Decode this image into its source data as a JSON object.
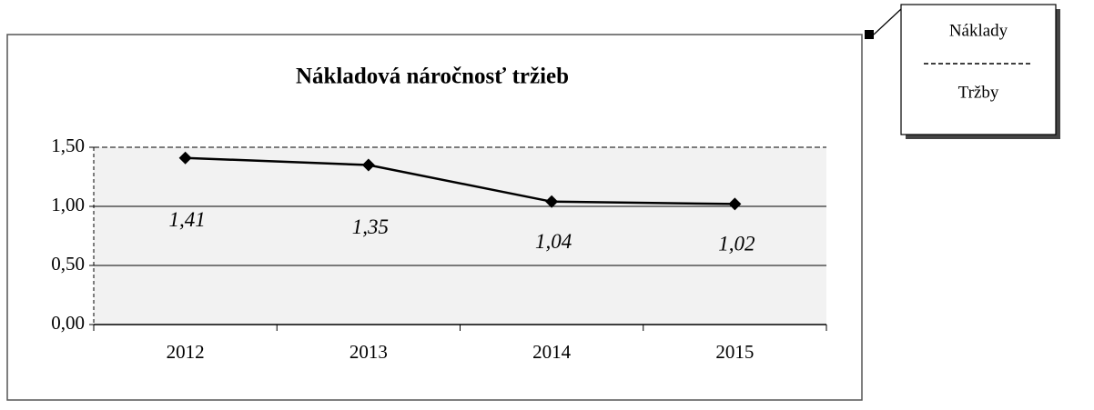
{
  "chart_data": {
    "type": "line",
    "title": "Nákladová náročnosť tržieb",
    "categories": [
      "2012",
      "2013",
      "2014",
      "2015"
    ],
    "series": [
      {
        "name": "Nákladová náročnosť tržieb",
        "color": "#000000",
        "values": [
          1.41,
          1.35,
          1.04,
          1.02
        ],
        "value_labels": [
          "1,41",
          "1,35",
          "1,04",
          "1,02"
        ]
      }
    ],
    "ylim": [
      0,
      1.5
    ],
    "yticks": [
      {
        "value": 0,
        "label": "0,00"
      },
      {
        "value": 0.5,
        "label": "0,50"
      },
      {
        "value": 1,
        "label": "1,00"
      },
      {
        "value": 1.5,
        "label": "1,50"
      }
    ],
    "grid": true
  },
  "callout": {
    "numerator": "Náklady",
    "denominator": "Tržby"
  }
}
